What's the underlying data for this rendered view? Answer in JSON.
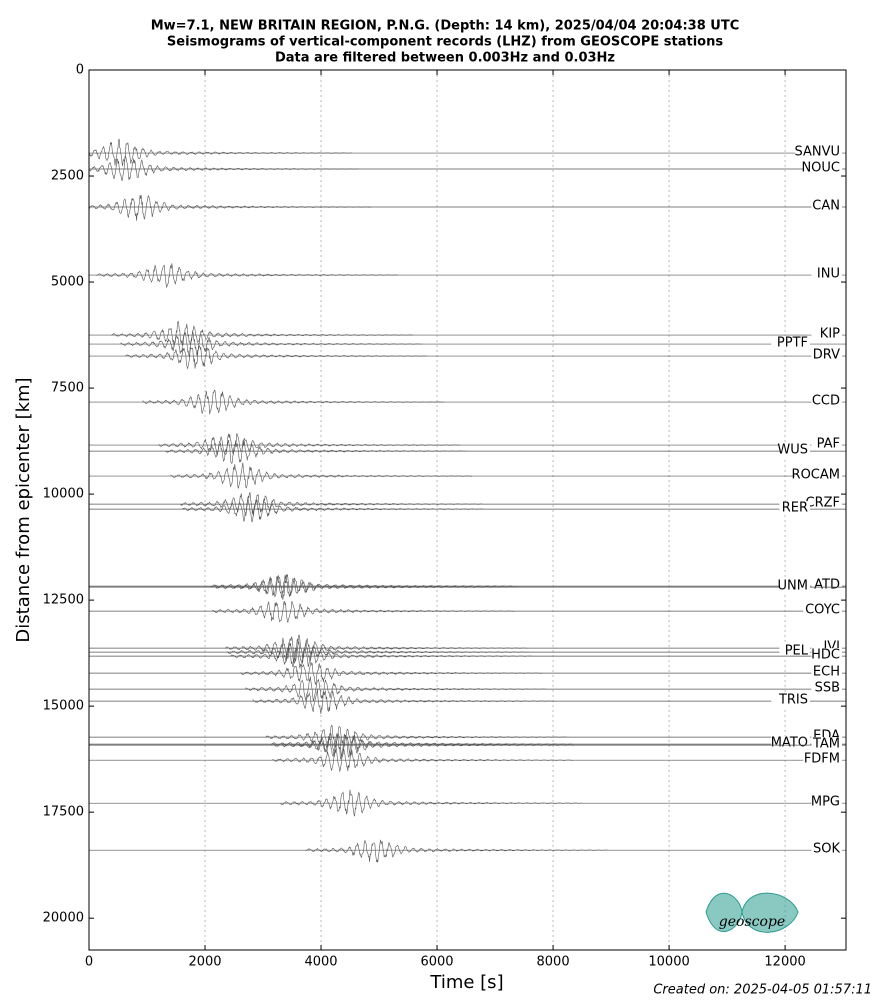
{
  "chart_data": {
    "type": "seismogram",
    "title": [
      "Mw=7.1, NEW BRITAIN REGION, P.N.G. (Depth: 14 km), 2025/04/04 20:04:38 UTC",
      "Seismograms of vertical-component records (LHZ) from GEOSCOPE stations",
      "Data are filtered between 0.003Hz and 0.03Hz"
    ],
    "x_label": "Time [s]",
    "y_label": "Distance from epicenter [km]",
    "xlim": [
      0,
      13050
    ],
    "xticks": [
      0,
      2000,
      4000,
      6000,
      8000,
      10000,
      12000
    ],
    "ylim": [
      0,
      20750
    ],
    "y_inverted": true,
    "yticks": [
      0,
      2500,
      5000,
      7500,
      10000,
      12500,
      15000,
      17500,
      20000
    ],
    "grid": true,
    "color": "#555555",
    "stations": [
      "SANVU",
      "NOUC",
      "CAN",
      "INU",
      "KIP",
      "PPTF",
      "DRV",
      "CCD",
      "PAF",
      "WUS",
      "ROCAM",
      "CRZF",
      "RER",
      "ATD",
      "UNM",
      "COYC",
      "IVI",
      "PEL",
      "HDC",
      "ECH",
      "SSB",
      "TRIS",
      "EDA",
      "MATO",
      "TAM",
      "FDFM",
      "MPG",
      "SOK"
    ],
    "distances": [
      1958,
      2335,
      3231,
      4835,
      6250,
      6462,
      6745,
      7830,
      8844,
      8986,
      9575,
      10236,
      10354,
      12170,
      12193,
      12759,
      13632,
      13726,
      13821,
      14222,
      14599,
      14882,
      15731,
      15896,
      15920,
      16274,
      17288,
      18396
    ],
    "peak_times": [
      534,
      655,
      879,
      1328,
      1586,
      1741,
      1828,
      2121,
      2397,
      2517,
      2603,
      2776,
      2810,
      3293,
      3379,
      3328,
      3552,
      3586,
      3638,
      3810,
      3897,
      4017,
      4241,
      4328,
      4362,
      4362,
      4500,
      4948
    ],
    "footer": "Created on: 2025-04-05 01:57:11",
    "logo": "geoscope"
  }
}
